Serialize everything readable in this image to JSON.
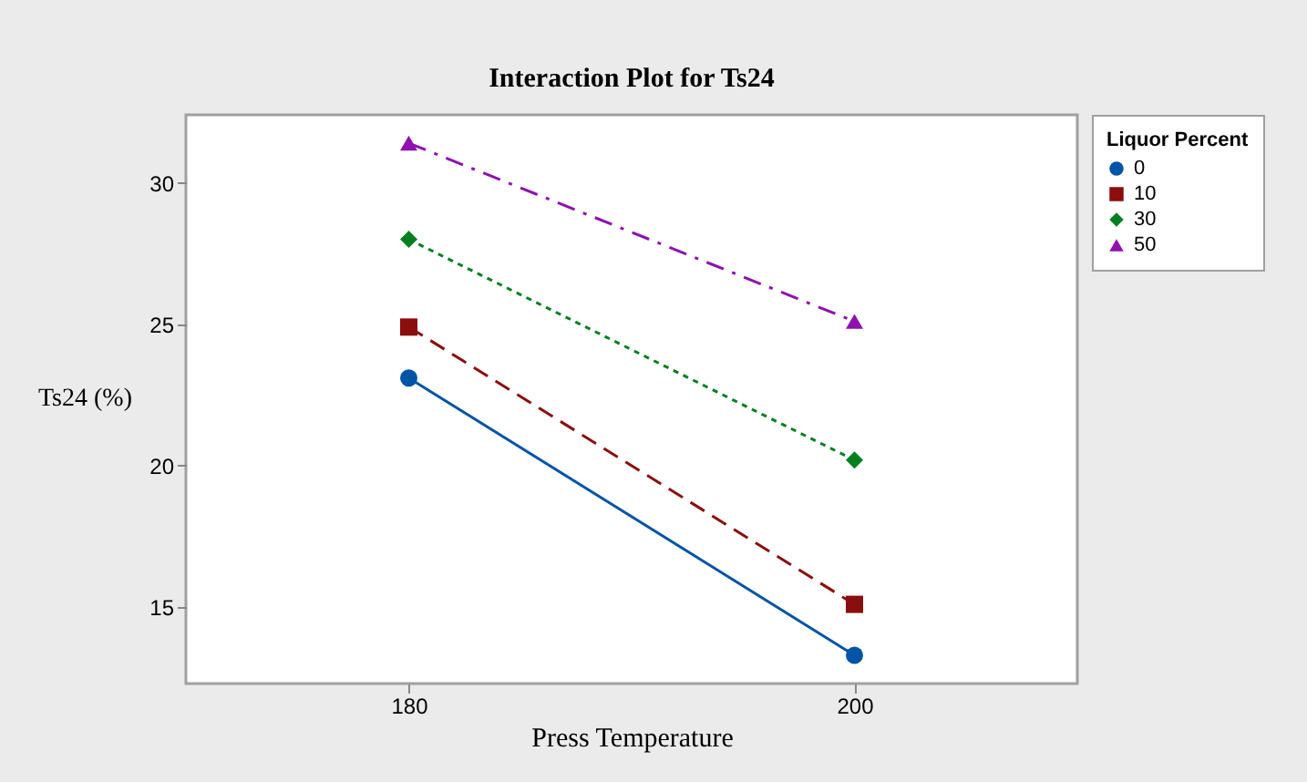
{
  "chart_data": {
    "type": "line",
    "title": "Interaction Plot for Ts24",
    "xlabel": "Press Temperature",
    "ylabel": "Ts24  (%)",
    "legend_title": "Liquor Percent",
    "x": [
      180,
      200
    ],
    "series": [
      {
        "name": "0",
        "color": "#0054a6",
        "values": [
          23.1,
          13.3
        ],
        "marker": "circle",
        "line_style": "solid"
      },
      {
        "name": "10",
        "color": "#8b0e0e",
        "values": [
          24.9,
          15.1
        ],
        "marker": "square",
        "line_style": "dashed"
      },
      {
        "name": "30",
        "color": "#008020",
        "values": [
          28.0,
          20.2
        ],
        "marker": "diamond",
        "line_style": "dotted"
      },
      {
        "name": "50",
        "color": "#9010b0",
        "values": [
          31.4,
          25.1
        ],
        "marker": "triangle",
        "line_style": "dashdot"
      }
    ],
    "xlim": [
      170,
      210
    ],
    "xticks": [
      180,
      200
    ],
    "ylim": [
      12.3,
      32.4
    ],
    "yticks": [
      15,
      20,
      25,
      30
    ],
    "grid": false,
    "legend": "right"
  }
}
